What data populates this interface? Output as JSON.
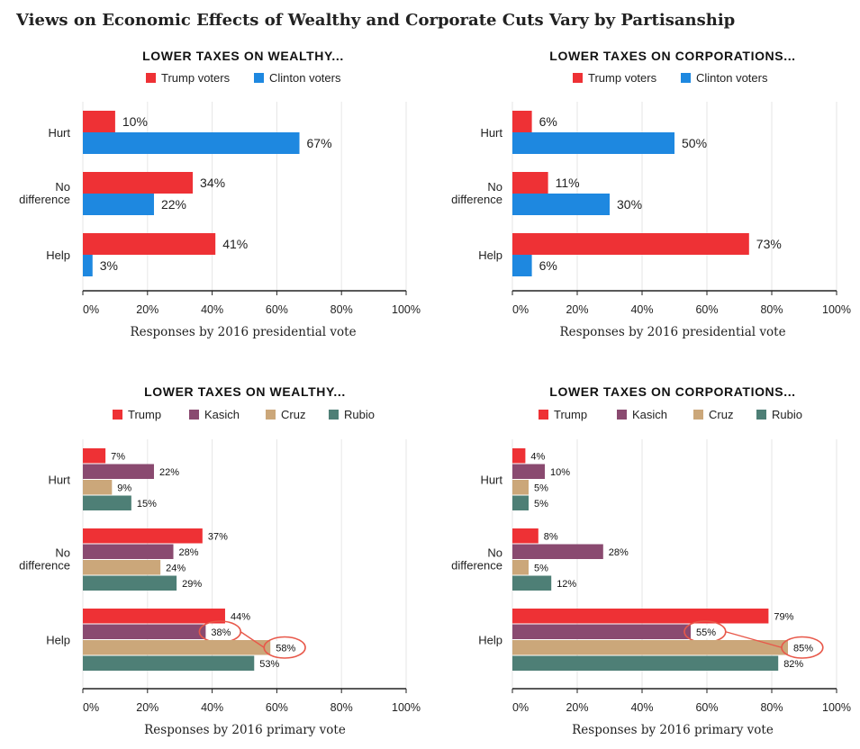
{
  "title": "Views on Economic Effects of Wealthy and Corporate Cuts Vary by Partisanship",
  "chart_data": [
    {
      "type": "bar",
      "orientation": "horizontal",
      "title": "LOWER TAXES ON WEALTHY...",
      "xlabel": "Responses by 2016 presidential vote",
      "categories": [
        "Hurt",
        "No difference",
        "Help"
      ],
      "xlim": [
        0,
        100
      ],
      "xticks": [
        "0%",
        "20%",
        "40%",
        "60%",
        "80%",
        "100%"
      ],
      "legend_position": "top",
      "series": [
        {
          "name": "Trump voters",
          "color": "#ee3135",
          "values": [
            10,
            34,
            41
          ]
        },
        {
          "name": "Clinton voters",
          "color": "#1e88e0",
          "values": [
            67,
            22,
            3
          ]
        }
      ]
    },
    {
      "type": "bar",
      "orientation": "horizontal",
      "title": "LOWER TAXES ON CORPORATIONS...",
      "xlabel": "Responses by 2016 presidential vote",
      "categories": [
        "Hurt",
        "No difference",
        "Help"
      ],
      "xlim": [
        0,
        100
      ],
      "xticks": [
        "0%",
        "20%",
        "40%",
        "60%",
        "80%",
        "100%"
      ],
      "legend_position": "top",
      "series": [
        {
          "name": "Trump voters",
          "color": "#ee3135",
          "values": [
            6,
            11,
            73
          ]
        },
        {
          "name": "Clinton voters",
          "color": "#1e88e0",
          "values": [
            50,
            30,
            6
          ]
        }
      ]
    },
    {
      "type": "bar",
      "orientation": "horizontal",
      "title": "LOWER TAXES ON WEALTHY...",
      "xlabel": "Responses by 2016 primary vote",
      "categories": [
        "Hurt",
        "No difference",
        "Help"
      ],
      "xlim": [
        0,
        100
      ],
      "xticks": [
        "0%",
        "20%",
        "40%",
        "60%",
        "80%",
        "100%"
      ],
      "legend_position": "top",
      "series": [
        {
          "name": "Trump",
          "color": "#ee3135",
          "values": [
            7,
            37,
            44
          ]
        },
        {
          "name": "Kasich",
          "color": "#8a4a70",
          "values": [
            22,
            28,
            38
          ]
        },
        {
          "name": "Cruz",
          "color": "#cba77a",
          "values": [
            9,
            24,
            58
          ]
        },
        {
          "name": "Rubio",
          "color": "#4e7f76",
          "values": [
            15,
            29,
            53
          ]
        }
      ],
      "highlighted": [
        {
          "category": "Help",
          "series": "Kasich"
        },
        {
          "category": "Help",
          "series": "Cruz"
        }
      ]
    },
    {
      "type": "bar",
      "orientation": "horizontal",
      "title": "LOWER TAXES ON CORPORATIONS...",
      "xlabel": "Responses by 2016 primary vote",
      "categories": [
        "Hurt",
        "No difference",
        "Help"
      ],
      "xlim": [
        0,
        100
      ],
      "xticks": [
        "0%",
        "20%",
        "40%",
        "60%",
        "80%",
        "100%"
      ],
      "legend_position": "top",
      "series": [
        {
          "name": "Trump",
          "color": "#ee3135",
          "values": [
            4,
            8,
            79
          ]
        },
        {
          "name": "Kasich",
          "color": "#8a4a70",
          "values": [
            10,
            28,
            55
          ]
        },
        {
          "name": "Cruz",
          "color": "#cba77a",
          "values": [
            5,
            5,
            85
          ]
        },
        {
          "name": "Rubio",
          "color": "#4e7f76",
          "values": [
            5,
            12,
            82
          ]
        }
      ],
      "highlighted": [
        {
          "category": "Help",
          "series": "Kasich"
        },
        {
          "category": "Help",
          "series": "Cruz"
        }
      ]
    }
  ]
}
